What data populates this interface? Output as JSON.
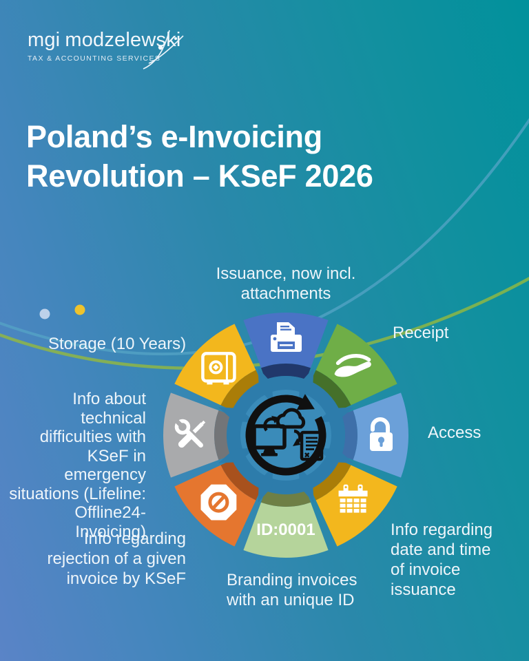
{
  "brand": {
    "name_first": "mgi",
    "name_second": "modzelewski",
    "tagline": "TAX & ACCOUNTING SERVICES"
  },
  "title": "Poland’s e-Invoicing\nRevolution – KSeF 2026",
  "labels": {
    "issuance": "Issuance, now incl.\nattachments",
    "receipt": "Receipt",
    "access": "Access",
    "datetime": "Info regarding\ndate and time\nof invoice\nissuance",
    "branding": "Branding invoices\nwith an unique ID",
    "rejection": "Info regarding\nrejection of a given\ninvoice by KSeF",
    "technical": "Info about technical\ndifficulties with\nKSeF in emergency\nsituations (Lifeline:\nOffline24-Invoicing)",
    "storage": "Storage (10 Years)"
  },
  "wheel": {
    "type": "cycle-diagram",
    "id_label": "ID:0001",
    "center_icon": "sync-arrows-computer-cloud-document",
    "gear_color": "#2d7cab",
    "center_color": "#3a8bb9",
    "ring_color": "#101010",
    "segments": [
      {
        "name": "issuance",
        "icon": "printer-icon",
        "color": "#4a73c5",
        "dark_color": "#21386b"
      },
      {
        "name": "receipt",
        "icon": "hand-receive-icon",
        "color": "#6fae47",
        "dark_color": "#45702a"
      },
      {
        "name": "access",
        "icon": "padlock-icon",
        "color": "#6ba0d9",
        "dark_color": "#3e6fa9"
      },
      {
        "name": "issuance-datetime",
        "icon": "calendar-icon",
        "color": "#f3b71d",
        "dark_color": "#aa7d08"
      },
      {
        "name": "branding",
        "icon": "id-label",
        "color": "#b5d49b",
        "dark_color": "#6e7f45"
      },
      {
        "name": "rejection",
        "icon": "prohibition-icon",
        "color": "#e5762f",
        "dark_color": "#a8511d"
      },
      {
        "name": "technical",
        "icon": "tools-icon",
        "color": "#a9aaac",
        "dark_color": "#737578"
      },
      {
        "name": "storage",
        "icon": "safe-icon",
        "color": "#f3b71d",
        "dark_color": "#aa7d08"
      }
    ]
  },
  "decor": {
    "curve_blue": "#55a4c6",
    "curve_green": "#95b93e",
    "dot_blue": "#bdd1ea",
    "dot_yellow": "#eec32d"
  }
}
